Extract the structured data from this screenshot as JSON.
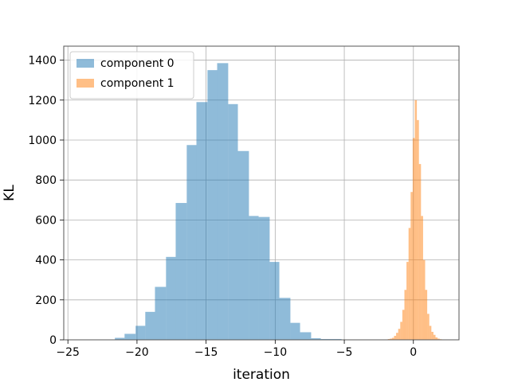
{
  "chart_data": {
    "type": "bar",
    "subtype": "overlapping-histogram",
    "title": "",
    "xlabel": "iteration",
    "ylabel": "KL",
    "xlim": [
      -25.3,
      3.3
    ],
    "ylim": [
      0,
      1470
    ],
    "x_ticks": [
      -25,
      -20,
      -15,
      -10,
      -5,
      0
    ],
    "x_tick_labels": [
      "−25",
      "−20",
      "−15",
      "−10",
      "−5",
      "0"
    ],
    "y_ticks": [
      0,
      200,
      400,
      600,
      800,
      1000,
      1200,
      1400
    ],
    "y_tick_labels": [
      "0",
      "200",
      "400",
      "600",
      "800",
      "1000",
      "1200",
      "1400"
    ],
    "grid": true,
    "legend_position": "upper-left",
    "series": [
      {
        "name": "component 0",
        "color": "#1f77b4",
        "opacity": 0.5,
        "bins": [
          {
            "x0": -22.4,
            "x1": -21.6,
            "count": 2
          },
          {
            "x0": -21.6,
            "x1": -20.9,
            "count": 10
          },
          {
            "x0": -20.9,
            "x1": -20.1,
            "count": 30
          },
          {
            "x0": -20.1,
            "x1": -19.4,
            "count": 70
          },
          {
            "x0": -19.4,
            "x1": -18.7,
            "count": 140
          },
          {
            "x0": -18.7,
            "x1": -17.9,
            "count": 265
          },
          {
            "x0": -17.9,
            "x1": -17.2,
            "count": 415
          },
          {
            "x0": -17.2,
            "x1": -16.4,
            "count": 685
          },
          {
            "x0": -16.4,
            "x1": -15.7,
            "count": 975
          },
          {
            "x0": -15.7,
            "x1": -14.9,
            "count": 1190
          },
          {
            "x0": -14.9,
            "x1": -14.2,
            "count": 1350
          },
          {
            "x0": -14.2,
            "x1": -13.4,
            "count": 1385
          },
          {
            "x0": -13.4,
            "x1": -12.7,
            "count": 1180
          },
          {
            "x0": -12.7,
            "x1": -11.9,
            "count": 945
          },
          {
            "x0": -11.9,
            "x1": -11.2,
            "count": 620
          },
          {
            "x0": -11.2,
            "x1": -10.4,
            "count": 615
          },
          {
            "x0": -10.4,
            "x1": -9.7,
            "count": 390
          },
          {
            "x0": -9.7,
            "x1": -8.9,
            "count": 210
          },
          {
            "x0": -8.9,
            "x1": -8.2,
            "count": 85
          },
          {
            "x0": -8.2,
            "x1": -7.4,
            "count": 38
          },
          {
            "x0": -7.4,
            "x1": -6.7,
            "count": 8
          },
          {
            "x0": -6.7,
            "x1": -5.9,
            "count": 4
          },
          {
            "x0": -5.9,
            "x1": -5.2,
            "count": 4
          },
          {
            "x0": -5.2,
            "x1": -4.4,
            "count": 2
          }
        ]
      },
      {
        "name": "component 1",
        "color": "#ff7f0e",
        "opacity": 0.5,
        "bins": [
          {
            "x0": -2.0,
            "x1": -1.85,
            "count": 2
          },
          {
            "x0": -1.85,
            "x1": -1.7,
            "count": 4
          },
          {
            "x0": -1.7,
            "x1": -1.55,
            "count": 6
          },
          {
            "x0": -1.55,
            "x1": -1.4,
            "count": 10
          },
          {
            "x0": -1.4,
            "x1": -1.25,
            "count": 20
          },
          {
            "x0": -1.25,
            "x1": -1.1,
            "count": 35
          },
          {
            "x0": -1.1,
            "x1": -0.95,
            "count": 55
          },
          {
            "x0": -0.95,
            "x1": -0.8,
            "count": 90
          },
          {
            "x0": -0.8,
            "x1": -0.65,
            "count": 150
          },
          {
            "x0": -0.65,
            "x1": -0.5,
            "count": 250
          },
          {
            "x0": -0.5,
            "x1": -0.35,
            "count": 390
          },
          {
            "x0": -0.35,
            "x1": -0.2,
            "count": 560
          },
          {
            "x0": -0.2,
            "x1": -0.05,
            "count": 740
          },
          {
            "x0": -0.05,
            "x1": 0.1,
            "count": 1010
          },
          {
            "x0": 0.1,
            "x1": 0.25,
            "count": 1200
          },
          {
            "x0": 0.25,
            "x1": 0.4,
            "count": 1100
          },
          {
            "x0": 0.4,
            "x1": 0.55,
            "count": 880
          },
          {
            "x0": 0.55,
            "x1": 0.7,
            "count": 620
          },
          {
            "x0": 0.7,
            "x1": 0.85,
            "count": 400
          },
          {
            "x0": 0.85,
            "x1": 1.0,
            "count": 250
          },
          {
            "x0": 1.0,
            "x1": 1.15,
            "count": 130
          },
          {
            "x0": 1.15,
            "x1": 1.3,
            "count": 70
          },
          {
            "x0": 1.3,
            "x1": 1.45,
            "count": 40
          },
          {
            "x0": 1.45,
            "x1": 1.6,
            "count": 25
          },
          {
            "x0": 1.6,
            "x1": 1.75,
            "count": 12
          },
          {
            "x0": 1.75,
            "x1": 1.9,
            "count": 6
          },
          {
            "x0": 1.9,
            "x1": 2.05,
            "count": 3
          }
        ]
      }
    ]
  }
}
